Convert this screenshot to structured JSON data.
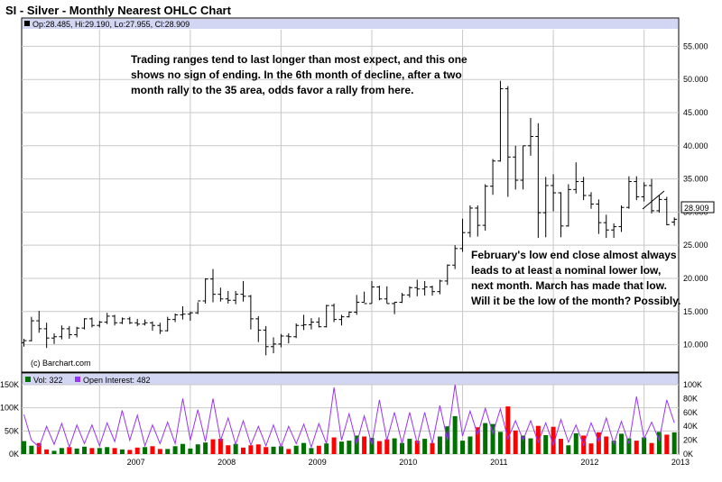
{
  "header": {
    "title": "SI - Silver - Monthly Nearest OHLC Chart"
  },
  "price_panel": {
    "legend_text": "Op:28.485, Hi:29.190, Lo:27.955, Cl:28.909",
    "last_price_label": "28.909",
    "watermark": "(c) Barchart.com"
  },
  "volume_panel": {
    "vol_label": "Vol: 322",
    "oi_label": "Open Interest: 482"
  },
  "annotations": {
    "top_lines": [
      "Trading ranges tend to last longer than most expect, and this one",
      "shows no sign of ending.  In the 6th month of decline, after a two",
      "month rally to the 35 area, odds favor a rally from here."
    ],
    "right_lines": [
      "February's low end close almost always",
      "leads to at least a nominal lower low,",
      "next month.  March has made that low.",
      "Will it be the low of the month?  Possibly."
    ]
  },
  "colors": {
    "bar_up": "#007000",
    "bar_down": "#ff0000",
    "open_interest": "#9933ff",
    "grid": "#c8c8c8",
    "panel_header": "#d3d6f2",
    "ohlc": "#000000"
  },
  "chart_data": [
    {
      "type": "ohlc",
      "title": "SI - Silver - Monthly Nearest OHLC Chart",
      "y_axis_side": "right",
      "ylim": [
        6,
        57.5
      ],
      "y_ticks": [
        "10.000",
        "15.000",
        "20.000",
        "25.000",
        "30.000",
        "35.000",
        "40.000",
        "45.000",
        "50.000",
        "55.000"
      ],
      "x_ticks": [
        "2007",
        "2008",
        "2009",
        "2010",
        "2011",
        "2012",
        "2013"
      ],
      "first_bar": "2006-03",
      "ohlc": [
        [
          10.3,
          10.9,
          9.7,
          10.6
        ],
        [
          10.6,
          14.2,
          10.5,
          13.6
        ],
        [
          13.6,
          15.1,
          11.8,
          12.4
        ],
        [
          12.4,
          13.3,
          9.5,
          11.0
        ],
        [
          11.0,
          11.7,
          10.1,
          11.2
        ],
        [
          11.2,
          12.9,
          10.8,
          12.4
        ],
        [
          12.4,
          12.8,
          10.9,
          11.5
        ],
        [
          11.5,
          12.7,
          11.1,
          12.5
        ],
        [
          12.5,
          14.0,
          12.3,
          13.9
        ],
        [
          13.9,
          14.1,
          12.6,
          12.9
        ],
        [
          12.9,
          13.6,
          12.6,
          13.4
        ],
        [
          13.4,
          14.8,
          13.1,
          14.3
        ],
        [
          14.3,
          14.5,
          12.9,
          13.3
        ],
        [
          13.3,
          14.1,
          13.1,
          13.9
        ],
        [
          13.9,
          14.2,
          13.1,
          13.3
        ],
        [
          13.3,
          13.9,
          12.8,
          13.1
        ],
        [
          13.1,
          13.8,
          12.9,
          13.3
        ],
        [
          13.3,
          13.5,
          12.1,
          12.9
        ],
        [
          12.9,
          13.3,
          11.6,
          12.1
        ],
        [
          12.1,
          14.2,
          12.0,
          13.8
        ],
        [
          13.8,
          14.7,
          13.4,
          14.5
        ],
        [
          14.5,
          15.8,
          13.8,
          14.6
        ],
        [
          14.6,
          15.0,
          13.6,
          14.8
        ],
        [
          14.8,
          16.4,
          14.6,
          16.6
        ],
        [
          16.6,
          20.0,
          16.2,
          19.9
        ],
        [
          19.9,
          21.4,
          16.4,
          17.6
        ],
        [
          17.6,
          18.6,
          16.5,
          16.9
        ],
        [
          16.9,
          18.1,
          16.2,
          16.7
        ],
        [
          16.7,
          18.1,
          16.1,
          17.6
        ],
        [
          17.6,
          19.6,
          16.5,
          17.3
        ],
        [
          17.3,
          17.5,
          12.3,
          13.9
        ],
        [
          13.9,
          14.3,
          10.4,
          12.2
        ],
        [
          12.2,
          12.8,
          8.4,
          9.7
        ],
        [
          9.7,
          11.1,
          8.7,
          10.1
        ],
        [
          10.1,
          11.6,
          9.6,
          11.3
        ],
        [
          11.3,
          11.7,
          10.2,
          11.2
        ],
        [
          11.2,
          13.2,
          11.0,
          12.9
        ],
        [
          12.9,
          14.5,
          12.2,
          13.0
        ],
        [
          13.0,
          14.0,
          12.3,
          13.4
        ],
        [
          13.4,
          14.1,
          12.6,
          12.7
        ],
        [
          12.7,
          16.0,
          12.6,
          15.9
        ],
        [
          15.9,
          16.2,
          13.4,
          13.8
        ],
        [
          13.8,
          14.5,
          12.9,
          14.2
        ],
        [
          14.2,
          15.0,
          14.1,
          14.9
        ],
        [
          14.9,
          17.5,
          14.5,
          16.4
        ],
        [
          16.4,
          18.0,
          16.4,
          16.2
        ],
        [
          16.2,
          19.6,
          16.2,
          18.7
        ],
        [
          18.7,
          18.9,
          16.7,
          16.9
        ],
        [
          16.9,
          18.8,
          16.2,
          16.2
        ],
        [
          16.2,
          16.4,
          14.6,
          16.4
        ],
        [
          16.4,
          17.8,
          16.3,
          17.5
        ],
        [
          17.5,
          18.8,
          17.1,
          18.6
        ],
        [
          18.6,
          19.8,
          17.3,
          18.4
        ],
        [
          18.4,
          19.6,
          17.4,
          18.7
        ],
        [
          18.7,
          18.9,
          17.4,
          18.0
        ],
        [
          18.0,
          19.8,
          17.6,
          19.6
        ],
        [
          19.6,
          22.1,
          19.0,
          22.0
        ],
        [
          22.0,
          25.0,
          21.4,
          24.5
        ],
        [
          24.5,
          29.0,
          24.0,
          26.9
        ],
        [
          26.9,
          31.0,
          26.2,
          30.6
        ],
        [
          30.6,
          31.0,
          26.3,
          28.0
        ],
        [
          28.0,
          34.2,
          27.2,
          33.9
        ],
        [
          33.9,
          38.0,
          32.6,
          37.7
        ],
        [
          37.7,
          49.8,
          37.6,
          48.6
        ],
        [
          48.6,
          49.0,
          32.3,
          38.3
        ],
        [
          38.3,
          40.0,
          33.4,
          34.8
        ],
        [
          34.8,
          40.0,
          33.4,
          40.0
        ],
        [
          40.0,
          44.2,
          38.5,
          41.4
        ],
        [
          41.4,
          43.4,
          26.1,
          29.9
        ],
        [
          29.9,
          35.3,
          26.2,
          34.0
        ],
        [
          34.0,
          35.7,
          30.1,
          32.9
        ],
        [
          32.9,
          33.0,
          26.2,
          27.9
        ],
        [
          27.9,
          34.2,
          27.8,
          33.4
        ],
        [
          33.4,
          37.5,
          32.8,
          34.6
        ],
        [
          34.6,
          35.3,
          31.8,
          32.5
        ],
        [
          32.5,
          33.0,
          30.5,
          31.2
        ],
        [
          31.2,
          31.9,
          26.7,
          28.4
        ],
        [
          28.4,
          29.6,
          26.1,
          27.3
        ],
        [
          27.3,
          28.3,
          26.1,
          27.8
        ],
        [
          27.8,
          31.0,
          27.0,
          30.7
        ],
        [
          30.7,
          35.4,
          30.5,
          34.6
        ],
        [
          34.6,
          35.4,
          31.8,
          32.3
        ],
        [
          32.3,
          34.5,
          31.6,
          34.0
        ],
        [
          34.0,
          35.0,
          29.8,
          30.2
        ],
        [
          30.2,
          32.5,
          29.9,
          31.9
        ],
        [
          31.9,
          32.3,
          28.0,
          28.1
        ],
        [
          28.485,
          29.19,
          27.955,
          28.909
        ]
      ]
    },
    {
      "type": "bar+line",
      "y_ticks_left": [
        "0K",
        "50K",
        "100K",
        "150K"
      ],
      "y_ticks_right": [
        "0K",
        "20K",
        "40K",
        "60K",
        "80K",
        "100K"
      ],
      "ylim_left": [
        0,
        150000
      ],
      "ylim_right": [
        0,
        100000
      ],
      "series": [
        {
          "name": "Vol",
          "values": [
            28000,
            18000,
            24000,
            10000,
            7000,
            13000,
            15000,
            12000,
            16000,
            13000,
            13000,
            15000,
            13000,
            10000,
            9000,
            14000,
            15000,
            17000,
            11000,
            11000,
            17000,
            22000,
            12000,
            21000,
            25000,
            32000,
            33000,
            19000,
            22000,
            14000,
            19000,
            21000,
            15000,
            16000,
            17000,
            11000,
            18000,
            24000,
            13000,
            18000,
            23000,
            36000,
            27000,
            29000,
            40000,
            38000,
            35000,
            28000,
            32000,
            34000,
            24000,
            33000,
            29000,
            33000,
            24000,
            38000,
            60000,
            82000,
            29000,
            38000,
            58000,
            67000,
            65000,
            48000,
            103000,
            51000,
            40000,
            34000,
            61000,
            41000,
            59000,
            33000,
            19000,
            45000,
            40000,
            23000,
            47000,
            38000,
            29000,
            44000,
            34000,
            29000,
            36000,
            24000,
            48000,
            42000,
            47000
          ],
          "up": [
            1,
            1,
            0,
            0,
            1,
            1,
            0,
            1,
            1,
            0,
            1,
            1,
            0,
            1,
            0,
            0,
            1,
            0,
            0,
            1,
            1,
            1,
            1,
            1,
            1,
            0,
            0,
            0,
            1,
            0,
            0,
            0,
            0,
            1,
            1,
            0,
            1,
            1,
            1,
            0,
            1,
            0,
            1,
            1,
            1,
            0,
            1,
            0,
            0,
            1,
            1,
            1,
            0,
            1,
            0,
            1,
            1,
            1,
            1,
            1,
            0,
            1,
            1,
            1,
            0,
            0,
            1,
            1,
            0,
            1,
            0,
            0,
            1,
            1,
            0,
            0,
            0,
            0,
            1,
            1,
            1,
            0,
            1,
            0,
            1,
            0,
            1
          ]
        },
        {
          "name": "Open Interest",
          "values": [
            57000,
            20000,
            10000,
            40000,
            14000,
            44000,
            10000,
            42000,
            15000,
            42000,
            12000,
            45000,
            18000,
            63000,
            20000,
            56000,
            12000,
            42000,
            15000,
            46000,
            15000,
            80000,
            20000,
            64000,
            18000,
            80000,
            20000,
            52000,
            14000,
            48000,
            13000,
            40000,
            12000,
            42000,
            10000,
            40000,
            15000,
            43000,
            10000,
            44000,
            15000,
            96000,
            20000,
            58000,
            15000,
            55000,
            14000,
            78000,
            20000,
            60000,
            15000,
            60000,
            15000,
            60000,
            15000,
            70000,
            20000,
            100000,
            26000,
            62000,
            28000,
            66000,
            30000,
            65000,
            22000,
            48000,
            20000,
            48000,
            17000,
            45000,
            13000,
            50000,
            17000,
            42000,
            13000,
            45000,
            18000,
            52000,
            15000,
            47000,
            15000,
            83000,
            22000,
            46000,
            20000,
            78000,
            45000
          ]
        }
      ]
    }
  ]
}
